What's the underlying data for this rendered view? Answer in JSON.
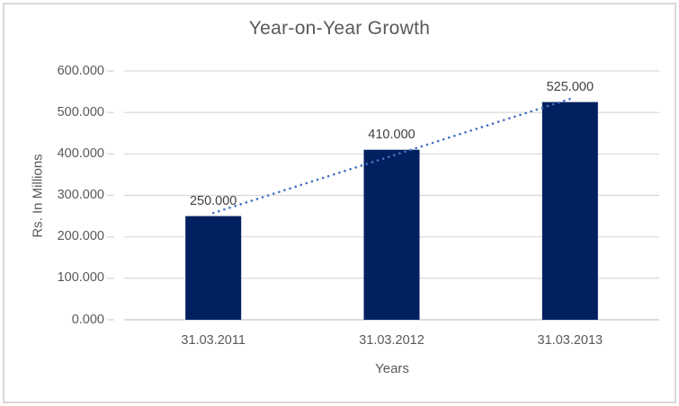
{
  "chart_data": {
    "type": "bar",
    "title": "Year-on-Year Growth",
    "xlabel": "Years",
    "ylabel": "Rs. In Millions",
    "categories": [
      "31.03.2011",
      "31.03.2012",
      "31.03.2013"
    ],
    "values": [
      250,
      410,
      525
    ],
    "value_labels": [
      "250.000",
      "410.000",
      "525.000"
    ],
    "ylim": [
      0,
      600
    ],
    "ytick_step": 100,
    "ytick_labels": [
      "0.000",
      "100.000",
      "200.000",
      "300.000",
      "400.000",
      "500.000",
      "600.000"
    ],
    "grid": true,
    "legend": false,
    "trendline": {
      "type": "linear",
      "style": "dotted"
    },
    "colors": {
      "bar": "#002060",
      "trendline": "#4472C4",
      "gridline": "#d9d9d9",
      "axis_line": "#d2d2d2",
      "tick_mark": "#d9d9d9",
      "axis_text": "#595959",
      "data_label": "#404040",
      "border": "#d9d9d9",
      "background": "#ffffff"
    }
  }
}
